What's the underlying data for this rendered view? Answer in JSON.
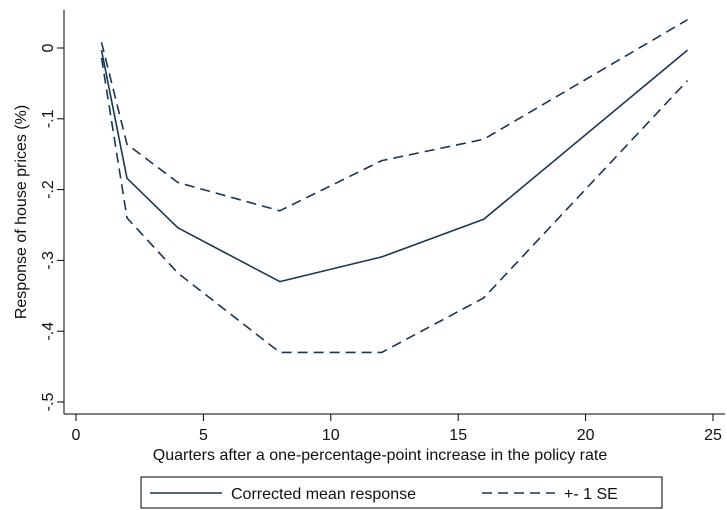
{
  "chart_data": {
    "type": "line",
    "xlabel": "Quarters after a one-percentage-point  increase in the policy rate",
    "ylabel": "Response of house prices (%)",
    "xlim": [
      0,
      25
    ],
    "ylim": [
      -0.5,
      0
    ],
    "xticks": [
      0,
      5,
      10,
      15,
      20,
      25
    ],
    "yticks": [
      0,
      -0.1,
      -0.2,
      -0.3,
      -0.4,
      -0.5
    ],
    "xtick_labels": [
      "0",
      "5",
      "10",
      "15",
      "20",
      "25"
    ],
    "ytick_labels": [
      "0",
      "-.1",
      "-.2",
      "-.3",
      "-.4",
      "-.5"
    ],
    "grid": false,
    "legend_position": "bottom",
    "series": [
      {
        "name": "Corrected mean response",
        "style": "solid",
        "color": "#1a3653",
        "x": [
          1,
          2,
          4,
          8,
          12,
          16,
          24
        ],
        "y": [
          -0.003,
          -0.184,
          -0.254,
          -0.33,
          -0.295,
          -0.242,
          -0.003
        ]
      },
      {
        "name": "+- 1 SE",
        "style": "dashed",
        "color": "#1a3653",
        "x": [
          1,
          2,
          4,
          8,
          12,
          16,
          24
        ],
        "y": [
          0.008,
          -0.136,
          -0.19,
          -0.23,
          -0.159,
          -0.129,
          0.04
        ]
      },
      {
        "name": "",
        "style": "dashed",
        "color": "#1a3653",
        "x": [
          1,
          2,
          4,
          8,
          12,
          16,
          24
        ],
        "y": [
          -0.014,
          -0.24,
          -0.318,
          -0.43,
          -0.43,
          -0.353,
          -0.046
        ]
      }
    ]
  }
}
